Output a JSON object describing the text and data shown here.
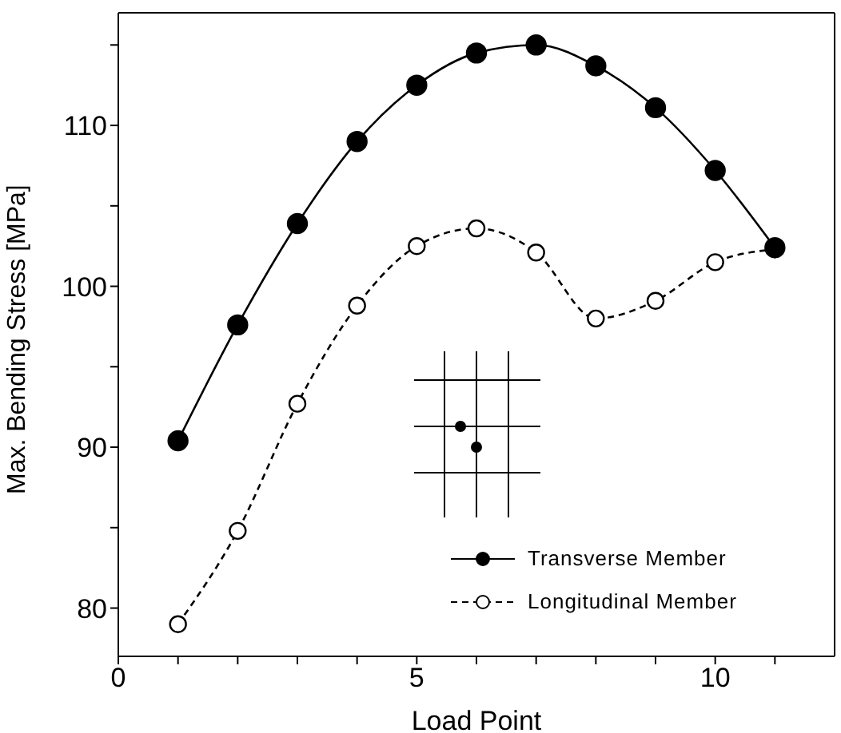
{
  "chart_data": {
    "type": "line",
    "xlabel": "Load Point",
    "ylabel": "Max. Bending Stress [MPa]",
    "x": [
      1,
      2,
      3,
      4,
      5,
      6,
      7,
      8,
      9,
      10,
      11
    ],
    "xlim": [
      0,
      12
    ],
    "ylim": [
      77,
      117
    ],
    "xticks": [
      0,
      {
        "value": 1,
        "label": null
      },
      {
        "value": 2,
        "label": null
      },
      {
        "value": 3,
        "label": null
      },
      {
        "value": 4,
        "label": null
      },
      5,
      {
        "value": 6,
        "label": null
      },
      {
        "value": 7,
        "label": null
      },
      {
        "value": 8,
        "label": null
      },
      {
        "value": 9,
        "label": null
      },
      10,
      {
        "value": 11,
        "label": null
      }
    ],
    "yticks": [
      80,
      {
        "value": 85,
        "label": null
      },
      90,
      {
        "value": 95,
        "label": null
      },
      100,
      {
        "value": 105,
        "label": null
      },
      110,
      {
        "value": 115,
        "label": null
      }
    ],
    "legend": "bottom right",
    "marker": "circle",
    "series": [
      {
        "name": "Transverse Member",
        "color": "#000000",
        "line_style": "solid",
        "values": [
          90.4,
          97.6,
          103.9,
          109,
          112.5,
          114.5,
          115,
          113.7,
          111.1,
          107.2,
          102.4
        ]
      },
      {
        "name": "Longitudinal Member",
        "color": "#000000",
        "line_style": "dashed",
        "values": [
          79,
          84.8,
          92.7,
          98.8,
          102.5,
          103.6,
          102.1,
          98,
          99.1,
          101.5,
          102.3
        ]
      }
    ]
  }
}
